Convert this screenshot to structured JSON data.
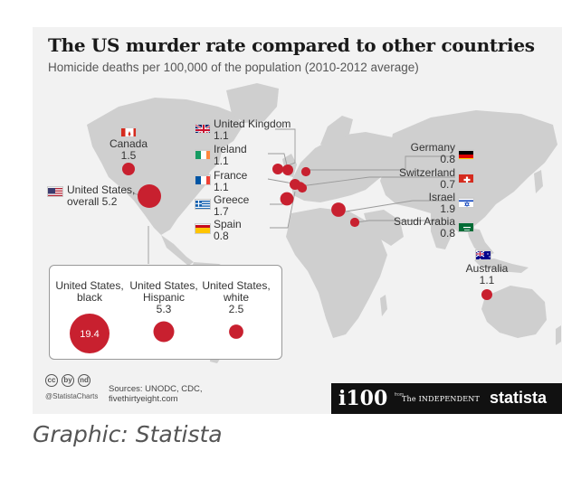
{
  "chart_data": {
    "type": "bubble-map",
    "title": "The US murder rate compared to other countries",
    "subtitle": "Homicide deaths per 100,000 of the population (2010-2012 average)",
    "countries": [
      {
        "name": "Canada",
        "value": 1.5,
        "value_label": "1.5",
        "flag": "ca"
      },
      {
        "name": "United States, overall",
        "value": 5.2,
        "value_label": "overall 5.2",
        "flag": "us"
      },
      {
        "name": "United Kingdom",
        "value": 1.1,
        "value_label": "1.1",
        "flag": "gb"
      },
      {
        "name": "Ireland",
        "value": 1.1,
        "value_label": "1.1",
        "flag": "ie"
      },
      {
        "name": "France",
        "value": 1.1,
        "value_label": "1.1",
        "flag": "fr"
      },
      {
        "name": "Greece",
        "value": 1.7,
        "value_label": "1.7",
        "flag": "gr"
      },
      {
        "name": "Spain",
        "value": 0.8,
        "value_label": "0.8",
        "flag": "es"
      },
      {
        "name": "Germany",
        "value": 0.8,
        "value_label": "0.8",
        "flag": "de"
      },
      {
        "name": "Switzerland",
        "value": 0.7,
        "value_label": "0.7",
        "flag": "ch"
      },
      {
        "name": "Israel",
        "value": 1.9,
        "value_label": "1.9",
        "flag": "il"
      },
      {
        "name": "Saudi Arabia",
        "value": 0.8,
        "value_label": "0.8",
        "flag": "sa"
      },
      {
        "name": "Australia",
        "value": 1.1,
        "value_label": "1.1",
        "flag": "au"
      }
    ],
    "us_breakdown": [
      {
        "line1": "United States,",
        "line2": "black",
        "value": 19.4,
        "value_label": "19.4"
      },
      {
        "line1": "United States,",
        "line2": "Hispanic",
        "value": 5.3,
        "value_label": "5.3"
      },
      {
        "line1": "United States,",
        "line2": "white",
        "value": 2.5,
        "value_label": "2.5"
      }
    ]
  },
  "colors": {
    "bubble": "#c8202f",
    "land": "#cfcfcf",
    "leader": "#9a9a9a",
    "card": "#f2f2f2"
  },
  "labels": {
    "us_name": "United States,",
    "uk_name": "United Kingdom"
  },
  "footer": {
    "cc_icons": [
      "cc",
      "by",
      "nd"
    ],
    "handle": "@StatistaCharts",
    "sources_line1": "Sources: UNODC, CDC,",
    "sources_line2": "fivethirtyeight.com",
    "i100": "i100",
    "independent_from": "from",
    "independent": "The INDEPENDENT",
    "statista": "statista"
  },
  "credit": "Graphic: Statista"
}
